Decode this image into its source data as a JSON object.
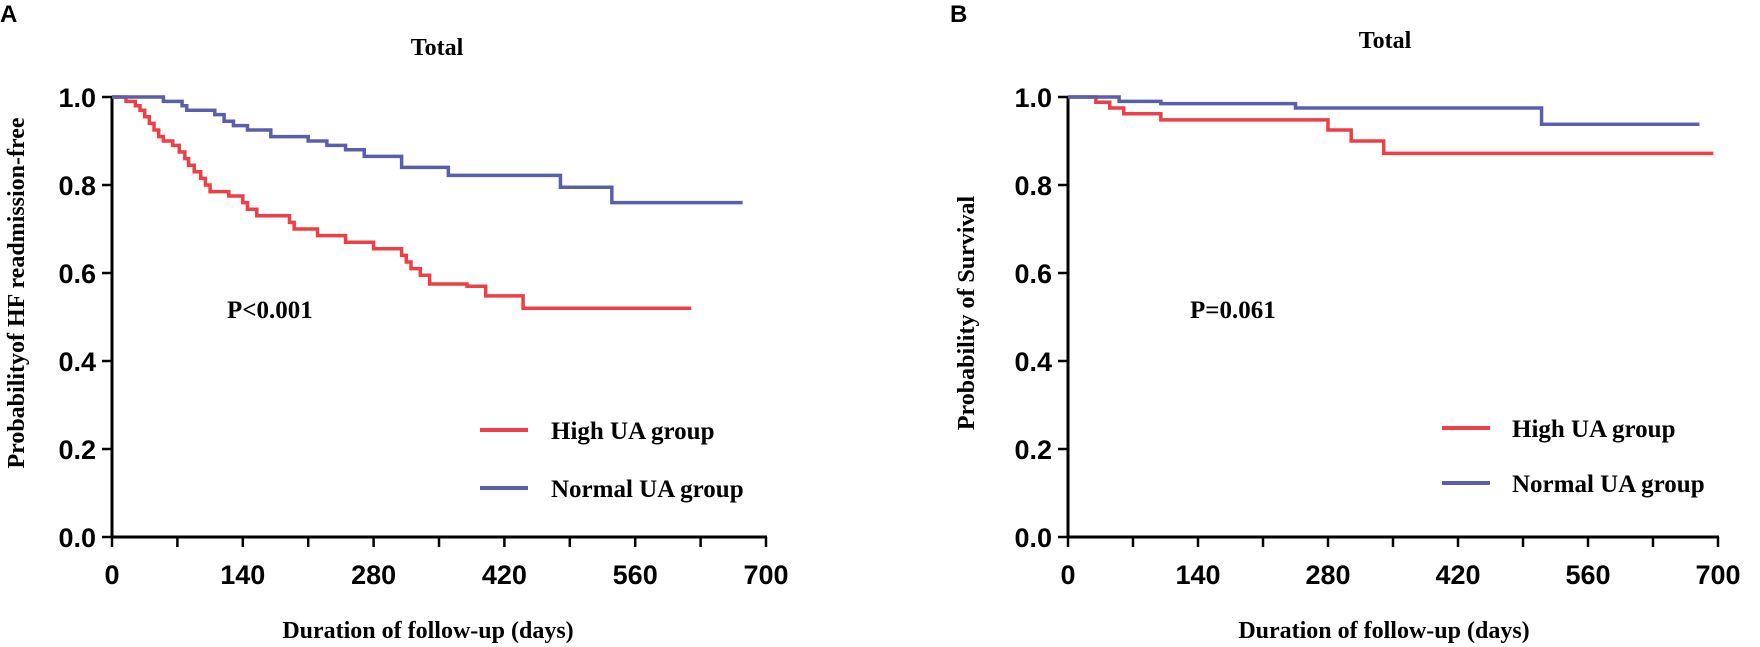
{
  "colors": {
    "high": "#ee3e46",
    "normal": "#5a5fad",
    "axis": "#000000"
  },
  "chart_data": [
    {
      "panel": "A",
      "type": "line",
      "subtype": "kaplan-meier-step",
      "title": "Total",
      "xlabel": "Duration of follow-up (days)",
      "ylabel": "Probabilityof HF readmission-free",
      "xlim": [
        0,
        700
      ],
      "ylim": [
        0,
        1.0
      ],
      "xticks": [
        0,
        140,
        280,
        420,
        560,
        700
      ],
      "yticks": [
        0.0,
        0.2,
        0.4,
        0.6,
        0.8,
        1.0
      ],
      "xtick_labels": [
        "0",
        "140",
        "280",
        "420",
        "560",
        "700"
      ],
      "ytick_labels": [
        "0.0",
        "0.2",
        "0.4",
        "0.6",
        "0.8",
        "1.0"
      ],
      "annotation": "P<0.001",
      "legend_position": "bottom-right",
      "series": [
        {
          "name": "High UA group",
          "color_key": "high",
          "points": [
            [
              0,
              1.0
            ],
            [
              15,
              1.0
            ],
            [
              15,
              0.99
            ],
            [
              25,
              0.99
            ],
            [
              25,
              0.98
            ],
            [
              30,
              0.98
            ],
            [
              30,
              0.97
            ],
            [
              35,
              0.97
            ],
            [
              35,
              0.955
            ],
            [
              40,
              0.955
            ],
            [
              40,
              0.94
            ],
            [
              45,
              0.94
            ],
            [
              45,
              0.925
            ],
            [
              50,
              0.925
            ],
            [
              50,
              0.91
            ],
            [
              55,
              0.91
            ],
            [
              55,
              0.9
            ],
            [
              65,
              0.9
            ],
            [
              65,
              0.89
            ],
            [
              72,
              0.89
            ],
            [
              72,
              0.875
            ],
            [
              78,
              0.875
            ],
            [
              78,
              0.86
            ],
            [
              82,
              0.86
            ],
            [
              82,
              0.845
            ],
            [
              88,
              0.845
            ],
            [
              88,
              0.83
            ],
            [
              95,
              0.83
            ],
            [
              95,
              0.815
            ],
            [
              100,
              0.815
            ],
            [
              100,
              0.8
            ],
            [
              105,
              0.8
            ],
            [
              105,
              0.785
            ],
            [
              125,
              0.785
            ],
            [
              125,
              0.775
            ],
            [
              140,
              0.775
            ],
            [
              140,
              0.76
            ],
            [
              145,
              0.76
            ],
            [
              145,
              0.745
            ],
            [
              155,
              0.745
            ],
            [
              155,
              0.73
            ],
            [
              190,
              0.73
            ],
            [
              190,
              0.715
            ],
            [
              195,
              0.715
            ],
            [
              195,
              0.7
            ],
            [
              220,
              0.7
            ],
            [
              220,
              0.685
            ],
            [
              250,
              0.685
            ],
            [
              250,
              0.67
            ],
            [
              280,
              0.67
            ],
            [
              280,
              0.655
            ],
            [
              310,
              0.655
            ],
            [
              310,
              0.64
            ],
            [
              315,
              0.64
            ],
            [
              315,
              0.625
            ],
            [
              320,
              0.625
            ],
            [
              320,
              0.61
            ],
            [
              330,
              0.61
            ],
            [
              330,
              0.595
            ],
            [
              340,
              0.595
            ],
            [
              340,
              0.575
            ],
            [
              380,
              0.575
            ],
            [
              380,
              0.57
            ],
            [
              400,
              0.57
            ],
            [
              400,
              0.548
            ],
            [
              440,
              0.548
            ],
            [
              440,
              0.52
            ],
            [
              620,
              0.52
            ]
          ]
        },
        {
          "name": "Normal UA group",
          "color_key": "normal",
          "points": [
            [
              0,
              1.0
            ],
            [
              55,
              1.0
            ],
            [
              55,
              0.99
            ],
            [
              75,
              0.99
            ],
            [
              75,
              0.98
            ],
            [
              80,
              0.98
            ],
            [
              80,
              0.97
            ],
            [
              110,
              0.97
            ],
            [
              110,
              0.96
            ],
            [
              120,
              0.96
            ],
            [
              120,
              0.945
            ],
            [
              130,
              0.945
            ],
            [
              130,
              0.935
            ],
            [
              145,
              0.935
            ],
            [
              145,
              0.925
            ],
            [
              170,
              0.925
            ],
            [
              170,
              0.91
            ],
            [
              210,
              0.91
            ],
            [
              210,
              0.9
            ],
            [
              230,
              0.9
            ],
            [
              230,
              0.89
            ],
            [
              250,
              0.89
            ],
            [
              250,
              0.88
            ],
            [
              270,
              0.88
            ],
            [
              270,
              0.865
            ],
            [
              310,
              0.865
            ],
            [
              310,
              0.84
            ],
            [
              360,
              0.84
            ],
            [
              360,
              0.822
            ],
            [
              480,
              0.822
            ],
            [
              480,
              0.795
            ],
            [
              535,
              0.795
            ],
            [
              535,
              0.76
            ],
            [
              675,
              0.76
            ]
          ]
        }
      ]
    },
    {
      "panel": "B",
      "type": "line",
      "subtype": "kaplan-meier-step",
      "title": "Total",
      "xlabel": "Duration of follow-up (days)",
      "ylabel": "Probability of Survival",
      "xlim": [
        0,
        700
      ],
      "ylim": [
        0,
        1.0
      ],
      "xticks": [
        0,
        140,
        280,
        420,
        560,
        700
      ],
      "yticks": [
        0.0,
        0.2,
        0.4,
        0.6,
        0.8,
        1.0
      ],
      "xtick_labels": [
        "0",
        "140",
        "280",
        "420",
        "560",
        "700"
      ],
      "ytick_labels": [
        "0.0",
        "0.2",
        "0.4",
        "0.6",
        "0.8",
        "1.0"
      ],
      "annotation": "P=0.061",
      "legend_position": "bottom-right",
      "series": [
        {
          "name": "High UA group",
          "color_key": "high",
          "points": [
            [
              0,
              1.0
            ],
            [
              30,
              1.0
            ],
            [
              30,
              0.988
            ],
            [
              45,
              0.988
            ],
            [
              45,
              0.975
            ],
            [
              60,
              0.975
            ],
            [
              60,
              0.962
            ],
            [
              100,
              0.962
            ],
            [
              100,
              0.948
            ],
            [
              280,
              0.948
            ],
            [
              280,
              0.925
            ],
            [
              305,
              0.925
            ],
            [
              305,
              0.9
            ],
            [
              340,
              0.9
            ],
            [
              340,
              0.872
            ],
            [
              695,
              0.872
            ]
          ]
        },
        {
          "name": "Normal UA group",
          "color_key": "normal",
          "points": [
            [
              0,
              1.0
            ],
            [
              55,
              1.0
            ],
            [
              55,
              0.99
            ],
            [
              100,
              0.99
            ],
            [
              100,
              0.985
            ],
            [
              245,
              0.985
            ],
            [
              245,
              0.975
            ],
            [
              510,
              0.975
            ],
            [
              510,
              0.938
            ],
            [
              680,
              0.938
            ]
          ]
        }
      ]
    }
  ]
}
